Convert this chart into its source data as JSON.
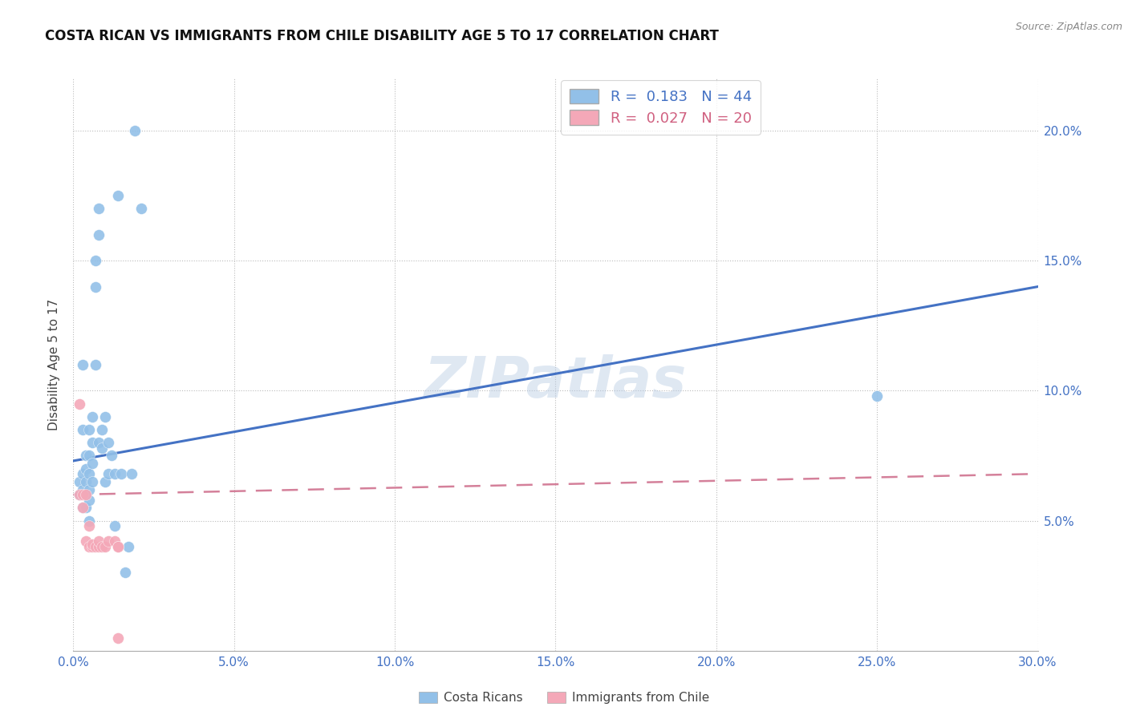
{
  "title": "COSTA RICAN VS IMMIGRANTS FROM CHILE DISABILITY AGE 5 TO 17 CORRELATION CHART",
  "source": "Source: ZipAtlas.com",
  "ylabel_label": "Disability Age 5 to 17",
  "xlim": [
    0.0,
    0.3
  ],
  "ylim": [
    0.0,
    0.22
  ],
  "right_yticks": [
    0.05,
    0.1,
    0.15,
    0.2
  ],
  "right_ytick_labels": [
    "5.0%",
    "10.0%",
    "15.0%",
    "20.0%"
  ],
  "blue_color": "#92C0E8",
  "pink_color": "#F4A8B8",
  "blue_line_color": "#4472C4",
  "pink_line_color": "#D4809A",
  "watermark_text": "ZIPatlas",
  "costa_ricans_x": [
    0.002,
    0.002,
    0.003,
    0.003,
    0.003,
    0.003,
    0.003,
    0.004,
    0.004,
    0.004,
    0.004,
    0.005,
    0.005,
    0.005,
    0.005,
    0.005,
    0.005,
    0.006,
    0.006,
    0.006,
    0.006,
    0.007,
    0.007,
    0.007,
    0.008,
    0.008,
    0.008,
    0.009,
    0.009,
    0.01,
    0.01,
    0.011,
    0.011,
    0.012,
    0.013,
    0.013,
    0.014,
    0.015,
    0.016,
    0.017,
    0.018,
    0.019,
    0.021,
    0.25
  ],
  "costa_ricans_y": [
    0.065,
    0.06,
    0.11,
    0.085,
    0.068,
    0.062,
    0.055,
    0.075,
    0.07,
    0.065,
    0.055,
    0.085,
    0.075,
    0.068,
    0.062,
    0.058,
    0.05,
    0.09,
    0.08,
    0.072,
    0.065,
    0.15,
    0.14,
    0.11,
    0.17,
    0.16,
    0.08,
    0.085,
    0.078,
    0.09,
    0.065,
    0.08,
    0.068,
    0.075,
    0.068,
    0.048,
    0.175,
    0.068,
    0.03,
    0.04,
    0.068,
    0.2,
    0.17,
    0.098
  ],
  "immigrants_chile_x": [
    0.002,
    0.002,
    0.003,
    0.003,
    0.004,
    0.004,
    0.005,
    0.005,
    0.006,
    0.006,
    0.007,
    0.008,
    0.008,
    0.009,
    0.01,
    0.011,
    0.013,
    0.014,
    0.014,
    0.014
  ],
  "immigrants_chile_y": [
    0.06,
    0.095,
    0.06,
    0.055,
    0.06,
    0.042,
    0.048,
    0.04,
    0.04,
    0.041,
    0.04,
    0.04,
    0.042,
    0.04,
    0.04,
    0.042,
    0.042,
    0.04,
    0.04,
    0.005
  ],
  "blue_line_x_start": 0.0,
  "blue_line_x_end": 0.3,
  "blue_line_y_start": 0.073,
  "blue_line_y_end": 0.14,
  "pink_line_x_start": 0.0,
  "pink_line_x_end": 0.3,
  "pink_line_y_start": 0.06,
  "pink_line_y_end": 0.068,
  "legend_blue_label": "R =  0.183   N = 44",
  "legend_pink_label": "R =  0.027   N = 20",
  "bottom_legend1": "Costa Ricans",
  "bottom_legend2": "Immigrants from Chile"
}
